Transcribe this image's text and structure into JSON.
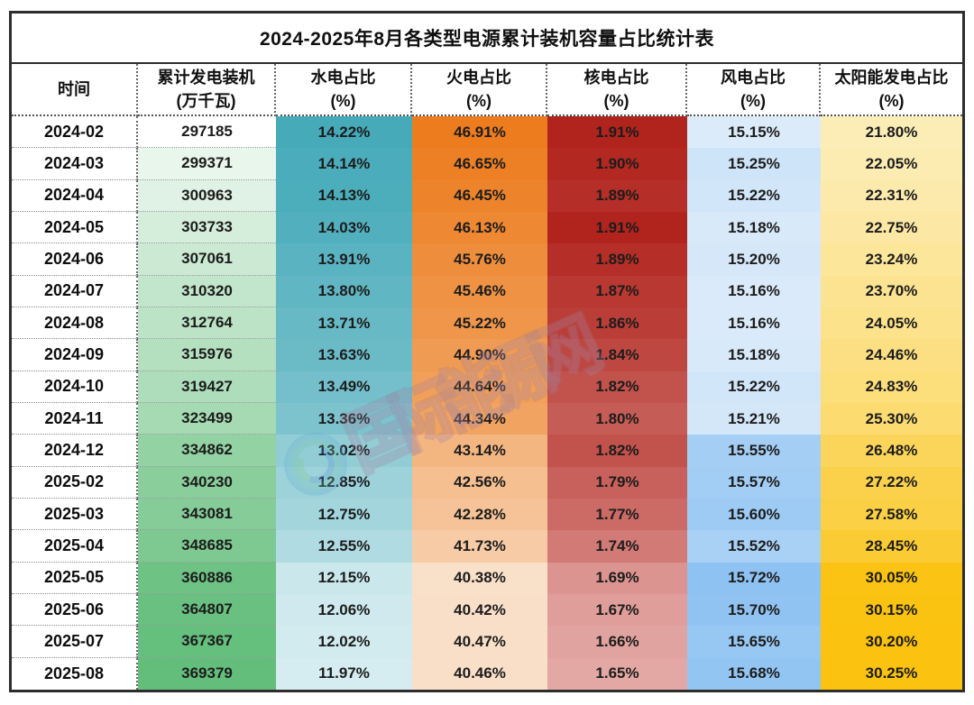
{
  "watermark": {
    "text": "国际能源网"
  },
  "chart_data": {
    "type": "table",
    "title": "2024-2025年8月各类型电源累计装机容量占比统计表",
    "columns": [
      {
        "key": "time",
        "line1": "时间",
        "line2": "",
        "format": "text"
      },
      {
        "key": "capacity",
        "line1": "累计发电装机",
        "line2": "(万千瓦)",
        "format": "int",
        "scale": {
          "min_color": "#FFFFFF",
          "max_color": "#63BE7B",
          "pow": 0.55
        }
      },
      {
        "key": "hydro",
        "line1": "水电占比",
        "line2": "(%)",
        "format": "pct",
        "scale": {
          "min_color": "#D5ECF0",
          "max_color": "#46AAB9"
        }
      },
      {
        "key": "thermal",
        "line1": "火电占比",
        "line2": "(%)",
        "format": "pct",
        "scale": {
          "min_color": "#F9E0C9",
          "max_color": "#EC7C1E"
        }
      },
      {
        "key": "nuclear",
        "line1": "核电占比",
        "line2": "(%)",
        "format": "pct",
        "scale": {
          "min_color": "#E3A8A4",
          "max_color": "#B1241D"
        }
      },
      {
        "key": "wind",
        "line1": "风电占比",
        "line2": "(%)",
        "format": "pct",
        "scale": {
          "min_color": "#DCEBFA",
          "max_color": "#8DC2F2"
        }
      },
      {
        "key": "solar",
        "line1": "太阳能发电占比",
        "line2": "(%)",
        "format": "pct",
        "scale": {
          "min_color": "#FCEDB7",
          "max_color": "#FBC20F"
        }
      }
    ],
    "rows": [
      {
        "time": "2024-02",
        "capacity": 297185,
        "hydro": 14.22,
        "thermal": 46.91,
        "nuclear": 1.91,
        "wind": 15.15,
        "solar": 21.8
      },
      {
        "time": "2024-03",
        "capacity": 299371,
        "hydro": 14.14,
        "thermal": 46.65,
        "nuclear": 1.9,
        "wind": 15.25,
        "solar": 22.05
      },
      {
        "time": "2024-04",
        "capacity": 300963,
        "hydro": 14.13,
        "thermal": 46.45,
        "nuclear": 1.89,
        "wind": 15.22,
        "solar": 22.31
      },
      {
        "time": "2024-05",
        "capacity": 303733,
        "hydro": 14.03,
        "thermal": 46.13,
        "nuclear": 1.91,
        "wind": 15.18,
        "solar": 22.75
      },
      {
        "time": "2024-06",
        "capacity": 307061,
        "hydro": 13.91,
        "thermal": 45.76,
        "nuclear": 1.89,
        "wind": 15.2,
        "solar": 23.24
      },
      {
        "time": "2024-07",
        "capacity": 310320,
        "hydro": 13.8,
        "thermal": 45.46,
        "nuclear": 1.87,
        "wind": 15.16,
        "solar": 23.7
      },
      {
        "time": "2024-08",
        "capacity": 312764,
        "hydro": 13.71,
        "thermal": 45.22,
        "nuclear": 1.86,
        "wind": 15.16,
        "solar": 24.05
      },
      {
        "time": "2024-09",
        "capacity": 315976,
        "hydro": 13.63,
        "thermal": 44.9,
        "nuclear": 1.84,
        "wind": 15.18,
        "solar": 24.46
      },
      {
        "time": "2024-10",
        "capacity": 319427,
        "hydro": 13.49,
        "thermal": 44.64,
        "nuclear": 1.82,
        "wind": 15.22,
        "solar": 24.83
      },
      {
        "time": "2024-11",
        "capacity": 323499,
        "hydro": 13.36,
        "thermal": 44.34,
        "nuclear": 1.8,
        "wind": 15.21,
        "solar": 25.3
      },
      {
        "time": "2024-12",
        "capacity": 334862,
        "hydro": 13.02,
        "thermal": 43.14,
        "nuclear": 1.82,
        "wind": 15.55,
        "solar": 26.48
      },
      {
        "time": "2025-02",
        "capacity": 340230,
        "hydro": 12.85,
        "thermal": 42.56,
        "nuclear": 1.79,
        "wind": 15.57,
        "solar": 27.22
      },
      {
        "time": "2025-03",
        "capacity": 343081,
        "hydro": 12.75,
        "thermal": 42.28,
        "nuclear": 1.77,
        "wind": 15.6,
        "solar": 27.58
      },
      {
        "time": "2025-04",
        "capacity": 348685,
        "hydro": 12.55,
        "thermal": 41.73,
        "nuclear": 1.74,
        "wind": 15.52,
        "solar": 28.45
      },
      {
        "time": "2025-05",
        "capacity": 360886,
        "hydro": 12.15,
        "thermal": 40.38,
        "nuclear": 1.69,
        "wind": 15.72,
        "solar": 30.05
      },
      {
        "time": "2025-06",
        "capacity": 364807,
        "hydro": 12.06,
        "thermal": 40.42,
        "nuclear": 1.67,
        "wind": 15.7,
        "solar": 30.15
      },
      {
        "time": "2025-07",
        "capacity": 367367,
        "hydro": 12.02,
        "thermal": 40.47,
        "nuclear": 1.66,
        "wind": 15.65,
        "solar": 30.2
      },
      {
        "time": "2025-08",
        "capacity": 369379,
        "hydro": 11.97,
        "thermal": 40.46,
        "nuclear": 1.65,
        "wind": 15.68,
        "solar": 30.25
      }
    ]
  }
}
